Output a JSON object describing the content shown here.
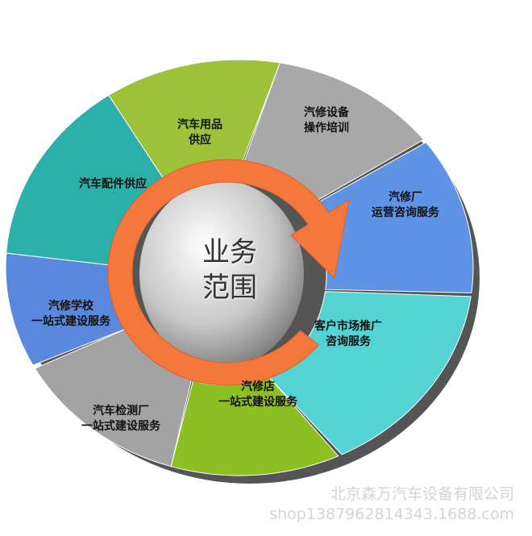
{
  "center_title": [
    "业务",
    "范围"
  ],
  "segments": [
    {
      "lines": [
        "汽车用品",
        "供应"
      ],
      "color": "#9dc23a"
    },
    {
      "lines": [
        "汽修设备",
        "操作培训"
      ],
      "color": "#a8a8a8"
    },
    {
      "lines": [
        "汽修厂",
        "运营咨询服务"
      ],
      "color": "#5f93e6"
    },
    {
      "lines": [
        "客户市场推广",
        "咨询服务"
      ],
      "color": "#55d2d2"
    },
    {
      "lines": [
        "汽修店",
        "一站式建设服务"
      ],
      "color": "#8cbf22"
    },
    {
      "lines": [
        "汽车检测厂",
        "一站式建设服务"
      ],
      "color": "#a3a3a3"
    },
    {
      "lines": [
        "汽修学校",
        "一站式建设服务"
      ],
      "color": "#5a88dc"
    },
    {
      "lines": [
        "汽车配件供应"
      ],
      "color": "#2bb1a9"
    }
  ],
  "arrow_color": "#f4783c",
  "watermark": {
    "company": "北京森万汽车设备有限公司",
    "shop": "shop1387962814343.1688.com"
  }
}
